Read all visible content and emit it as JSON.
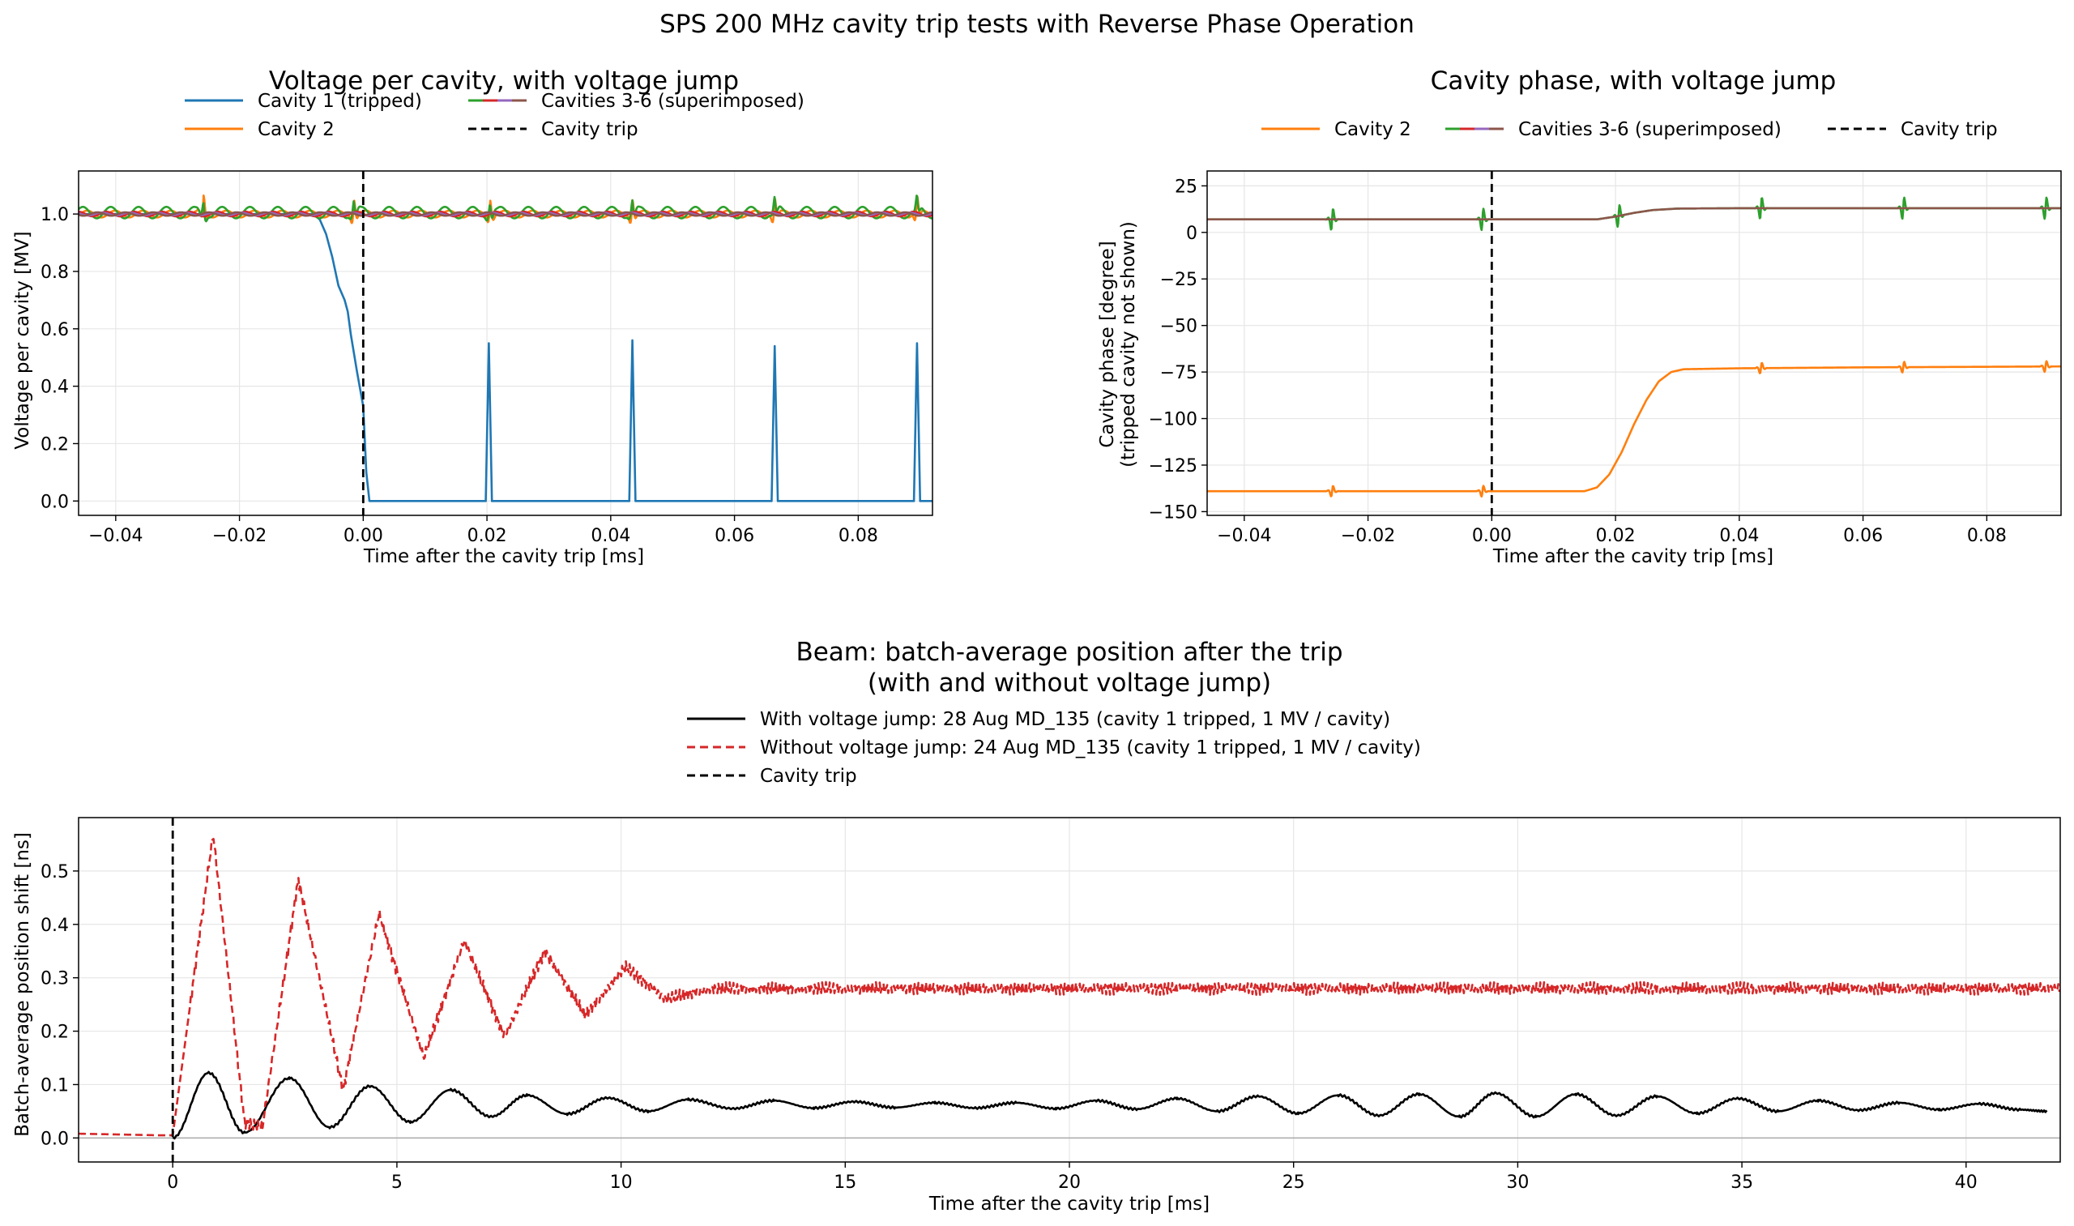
{
  "figure_title": "SPS 200 MHz cavity trip tests with Reverse Phase Operation",
  "chart_data": [
    {
      "type": "line",
      "title": "Voltage per cavity, with voltage jump",
      "xlabel": "Time after the cavity trip [ms]",
      "ylabel": "Voltage per cavity [MV]",
      "xlim": [
        -0.046,
        0.092
      ],
      "ylim": [
        -0.05,
        1.15
      ],
      "xticks": [
        -0.04,
        -0.02,
        0.0,
        0.02,
        0.04,
        0.06,
        0.08
      ],
      "xticklabels": [
        "−0.04",
        "−0.02",
        "0.00",
        "0.02",
        "0.04",
        "0.06",
        "0.08"
      ],
      "yticks": [
        0.0,
        0.2,
        0.4,
        0.6,
        0.8,
        1.0
      ],
      "yticklabels": [
        "0.0",
        "0.2",
        "0.4",
        "0.6",
        "0.8",
        "1.0"
      ],
      "grid": true,
      "legend_position": "above plot, two columns",
      "legend": [
        {
          "label": "Cavity 1 (tripped)",
          "style": "solid",
          "color": "#1f77b4"
        },
        {
          "label": "Cavity 2",
          "style": "solid",
          "color": "#ff7f0e"
        },
        {
          "label": "Cavities 3-6 (superimposed)",
          "style": "multi",
          "colors": [
            "#2ca02c",
            "#d62728",
            "#9467bd",
            "#8c564b"
          ]
        },
        {
          "label": "Cavity trip",
          "style": "dashed",
          "color": "#000000"
        }
      ],
      "series": [
        {
          "name": "Cavity 1 (tripped)",
          "color": "#1f77b4",
          "x": [
            -0.046,
            -0.008,
            -0.007,
            -0.006,
            -0.005,
            -0.004,
            -0.003,
            -0.0025,
            -0.002,
            -0.001,
            0.0,
            0.0005,
            0.001,
            0.002,
            0.0198,
            0.0203,
            0.0208,
            0.0215,
            0.043,
            0.0435,
            0.044,
            0.0447,
            0.066,
            0.0665,
            0.067,
            0.0677,
            0.089,
            0.0895,
            0.09,
            0.0907,
            0.092
          ],
          "y": [
            1.0,
            1.0,
            0.98,
            0.93,
            0.85,
            0.75,
            0.7,
            0.66,
            0.58,
            0.45,
            0.33,
            0.1,
            0.0,
            0.0,
            0.0,
            0.55,
            0.0,
            0.0,
            0.0,
            0.56,
            0.0,
            0.0,
            0.0,
            0.54,
            0.0,
            0.0,
            0.0,
            0.55,
            0.0,
            0.0,
            0.0
          ]
        },
        {
          "name": "Cavity 2",
          "color": "#ff7f0e",
          "base": 1.0,
          "ripple": 0.012,
          "spikes_at": [
            -0.0258,
            -0.0015,
            0.0205,
            0.0435,
            0.0665,
            0.0895
          ],
          "spike_amp": 0.07
        },
        {
          "name": "Cavity 3",
          "color": "#2ca02c",
          "base": 1.005,
          "ripple": 0.02,
          "spikes_at": [
            -0.0258,
            -0.0015,
            0.0205,
            0.0435,
            0.0665,
            0.0895
          ],
          "spike_amp": 0.05
        },
        {
          "name": "Cavity 4",
          "color": "#d62728",
          "base": 1.0,
          "ripple": 0.008
        },
        {
          "name": "Cavity 5",
          "color": "#9467bd",
          "base": 1.0,
          "ripple": 0.005
        },
        {
          "name": "Cavity 6",
          "color": "#8c564b",
          "base": 1.0,
          "ripple": 0.006
        }
      ],
      "markers": [
        {
          "name": "Cavity trip",
          "x": 0.0,
          "style": "dashed",
          "color": "#000000"
        }
      ]
    },
    {
      "type": "line",
      "title": "Cavity phase, with voltage jump",
      "xlabel": "Time after the cavity trip [ms]",
      "ylabel": "Cavity phase [degree]",
      "ylabel2": "(tripped cavity not shown)",
      "xlim": [
        -0.046,
        0.092
      ],
      "ylim": [
        -152,
        33
      ],
      "xticks": [
        -0.04,
        -0.02,
        0.0,
        0.02,
        0.04,
        0.06,
        0.08
      ],
      "xticklabels": [
        "−0.04",
        "−0.02",
        "0.00",
        "0.02",
        "0.04",
        "0.06",
        "0.08"
      ],
      "yticks": [
        25,
        0,
        -25,
        -50,
        -75,
        -100,
        -125,
        -150
      ],
      "yticklabels": [
        "25",
        "0",
        "−25",
        "−50",
        "−75",
        "−100",
        "−125",
        "−150"
      ],
      "grid": true,
      "legend_position": "above plot, one row",
      "legend": [
        {
          "label": "Cavity 2",
          "style": "solid",
          "color": "#ff7f0e"
        },
        {
          "label": "Cavities 3-6 (superimposed)",
          "style": "multi",
          "colors": [
            "#2ca02c",
            "#d62728",
            "#9467bd",
            "#8c564b"
          ]
        },
        {
          "label": "Cavity trip",
          "style": "dashed",
          "color": "#000000"
        }
      ],
      "series": [
        {
          "name": "Cavity 2",
          "color": "#ff7f0e",
          "x": [
            -0.046,
            0.015,
            0.017,
            0.019,
            0.021,
            0.023,
            0.025,
            0.027,
            0.029,
            0.031,
            0.04,
            0.06,
            0.092
          ],
          "y": [
            -139,
            -139,
            -137,
            -130,
            -118,
            -103,
            -90,
            -80,
            -75,
            -73.5,
            -73,
            -72.5,
            -72
          ],
          "spikes_at": [
            -0.0258,
            -0.0015,
            0.0435,
            0.0665,
            0.0895
          ],
          "spike_amp": 6
        },
        {
          "name": "Cavities 3-6",
          "color": "#2ca02c",
          "x": [
            -0.046,
            0.017,
            0.02,
            0.023,
            0.026,
            0.03,
            0.04,
            0.092
          ],
          "y": [
            7,
            7,
            8.5,
            10.5,
            12,
            12.8,
            13,
            13
          ],
          "spikes_at": [
            -0.0258,
            -0.0015,
            0.0205,
            0.0435,
            0.0665,
            0.0895
          ],
          "spike_amp": 12
        },
        {
          "name": "Cavities 3-6 overlay",
          "color": "#8c564b",
          "x": [
            -0.046,
            0.017,
            0.02,
            0.023,
            0.026,
            0.03,
            0.04,
            0.092
          ],
          "y": [
            7,
            7,
            8.5,
            10.5,
            12,
            12.8,
            13,
            13
          ]
        }
      ],
      "markers": [
        {
          "name": "Cavity trip",
          "x": 0.0,
          "style": "dashed",
          "color": "#000000"
        }
      ]
    },
    {
      "type": "line",
      "title": "Beam: batch-average position after the trip",
      "title2": "(with and without voltage jump)",
      "xlabel": "Time after the cavity trip [ms]",
      "ylabel": "Batch-average position shift [ns]",
      "xlim": [
        -2.1,
        42.1
      ],
      "ylim": [
        -0.045,
        0.6
      ],
      "xticks": [
        0,
        5,
        10,
        15,
        20,
        25,
        30,
        35,
        40
      ],
      "xticklabels": [
        "0",
        "5",
        "10",
        "15",
        "20",
        "25",
        "30",
        "35",
        "40"
      ],
      "yticks": [
        0.0,
        0.1,
        0.2,
        0.3,
        0.4,
        0.5
      ],
      "yticklabels": [
        "0.0",
        "0.1",
        "0.2",
        "0.3",
        "0.4",
        "0.5"
      ],
      "grid": true,
      "legend_position": "above plot",
      "legend": [
        {
          "label": "With voltage jump: 28 Aug MD_135 (cavity 1 tripped, 1 MV / cavity)",
          "style": "solid",
          "color": "#000000"
        },
        {
          "label": "Without voltage jump: 24 Aug MD_135 (cavity 1 tripped, 1 MV / cavity)",
          "style": "dashed",
          "color": "#d62728"
        },
        {
          "label": "Cavity trip",
          "style": "dashed",
          "color": "#000000"
        }
      ],
      "series": [
        {
          "name": "With voltage jump: 28 Aug MD_135 (cavity 1 tripped, 1 MV / cavity)",
          "color": "#000000",
          "style": "solid",
          "x": [
            0.0,
            0.8,
            1.6,
            2.6,
            3.5,
            4.4,
            5.3,
            6.2,
            7.1,
            7.9,
            8.8,
            9.7,
            10.6,
            11.5,
            12.5,
            13.4,
            14.3,
            15.2,
            16.1,
            17.0,
            17.9,
            18.8,
            19.7,
            20.6,
            21.5,
            22.4,
            23.3,
            24.2,
            25.1,
            26.0,
            26.9,
            27.8,
            28.7,
            29.5,
            30.4,
            31.3,
            32.2,
            33.1,
            34.0,
            34.9,
            35.8,
            36.7,
            37.6,
            38.5,
            39.4,
            40.3,
            41.2,
            41.8
          ],
          "y": [
            0.0,
            0.122,
            0.01,
            0.112,
            0.02,
            0.097,
            0.03,
            0.09,
            0.04,
            0.08,
            0.045,
            0.075,
            0.05,
            0.072,
            0.055,
            0.07,
            0.056,
            0.068,
            0.057,
            0.066,
            0.056,
            0.066,
            0.055,
            0.07,
            0.054,
            0.074,
            0.05,
            0.078,
            0.046,
            0.08,
            0.042,
            0.082,
            0.04,
            0.084,
            0.04,
            0.082,
            0.042,
            0.078,
            0.046,
            0.074,
            0.05,
            0.07,
            0.052,
            0.066,
            0.053,
            0.064,
            0.053,
            0.05
          ]
        },
        {
          "name": "Without voltage jump: 24 Aug MD_135 (cavity 1 tripped, 1 MV / cavity)",
          "color": "#d62728",
          "style": "dashed",
          "x": [
            -2.1,
            -0.3,
            0.0,
            0.9,
            1.6,
            2.0,
            2.8,
            3.8,
            4.6,
            5.6,
            6.5,
            7.4,
            8.3,
            9.2,
            10.1,
            11.0,
            12.0,
            20.0,
            30.0,
            42.1
          ],
          "y": [
            0.008,
            0.005,
            0.005,
            0.57,
            0.03,
            0.02,
            0.485,
            0.09,
            0.42,
            0.15,
            0.37,
            0.19,
            0.35,
            0.23,
            0.32,
            0.26,
            0.28,
            0.28,
            0.28,
            0.28
          ],
          "noise": 0.012
        }
      ],
      "markers": [
        {
          "name": "Cavity trip",
          "x": 0.0,
          "style": "dashed",
          "color": "#000000"
        }
      ]
    }
  ]
}
